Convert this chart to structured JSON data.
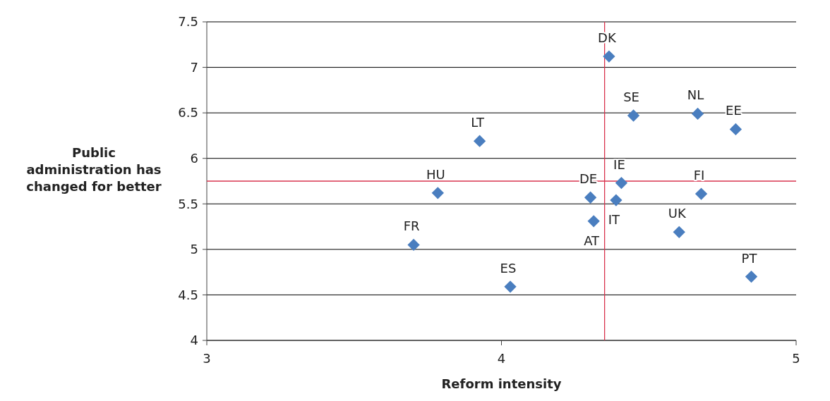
{
  "chart_data": {
    "type": "scatter",
    "xlabel": "Reform intensity",
    "ylabel": "Public administration has changed for better",
    "xlim": [
      3,
      5
    ],
    "xticks": [
      3,
      4,
      5
    ],
    "ylim": [
      4,
      7.5
    ],
    "yticks": [
      4,
      4.5,
      5,
      5.5,
      6,
      6.5,
      7,
      7.5
    ],
    "grid": "y",
    "marker": "diamond",
    "series": [
      {
        "color": "#4a7ebf",
        "x": [
          4.365,
          4.448,
          4.666,
          4.795,
          3.926,
          3.784,
          4.302,
          4.389,
          4.407,
          4.678,
          4.313,
          4.603,
          3.702,
          4.03,
          4.848
        ],
        "values": [
          7.12,
          6.47,
          6.49,
          6.32,
          6.19,
          5.62,
          5.57,
          5.54,
          5.73,
          5.61,
          5.31,
          5.19,
          5.05,
          4.59,
          4.7
        ]
      }
    ],
    "annotations": [
      {
        "text": "DK",
        "x": 4.365,
        "y": 7.12
      },
      {
        "text": "SE",
        "x": 4.448,
        "y": 6.47
      },
      {
        "text": "NL",
        "x": 4.666,
        "y": 6.49
      },
      {
        "text": "EE",
        "x": 4.795,
        "y": 6.32
      },
      {
        "text": "LT",
        "x": 3.926,
        "y": 6.19
      },
      {
        "text": "HU",
        "x": 3.784,
        "y": 5.62
      },
      {
        "text": "DE",
        "x": 4.302,
        "y": 5.57
      },
      {
        "text": "IT",
        "x": 4.389,
        "y": 5.54
      },
      {
        "text": "IE",
        "x": 4.407,
        "y": 5.73
      },
      {
        "text": "FI",
        "x": 4.678,
        "y": 5.61
      },
      {
        "text": "AT",
        "x": 4.313,
        "y": 5.31
      },
      {
        "text": "UK",
        "x": 4.603,
        "y": 5.19
      },
      {
        "text": "FR",
        "x": 3.702,
        "y": 5.05
      },
      {
        "text": "ES",
        "x": 4.03,
        "y": 4.59
      },
      {
        "text": "PT",
        "x": 4.848,
        "y": 4.7
      }
    ],
    "ref_lines": [
      {
        "axis": "x",
        "value": 4.35,
        "color": "#d9344e"
      },
      {
        "axis": "y",
        "value": 5.75,
        "color": "#d9344e"
      }
    ]
  }
}
